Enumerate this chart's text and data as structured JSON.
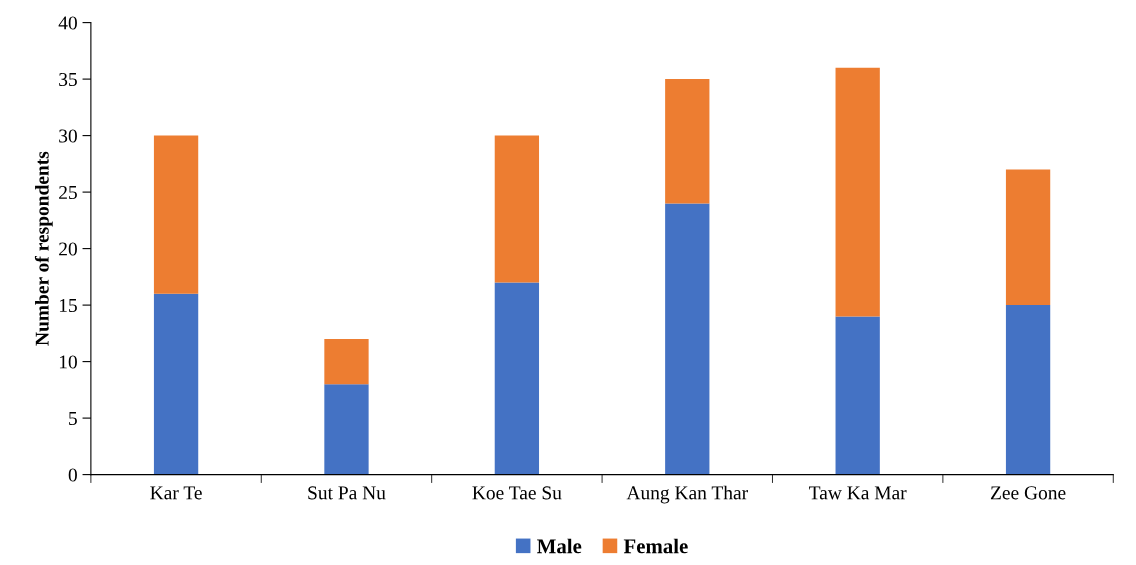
{
  "chart_data": {
    "type": "bar",
    "stacked": true,
    "ylabel": "Number of respondents",
    "categories": [
      "Kar Te",
      "Sut Pa Nu",
      "Koe Tae Su",
      "Aung Kan Thar",
      "Taw Ka Mar",
      "Zee Gone"
    ],
    "series": [
      {
        "name": "Male",
        "color": "#4472c4",
        "values": [
          16,
          8,
          17,
          24,
          14,
          15
        ]
      },
      {
        "name": "Female",
        "color": "#ed7d31",
        "values": [
          14,
          4,
          13,
          11,
          22,
          12
        ]
      }
    ],
    "ylim": [
      0,
      40
    ],
    "yticks": [
      0,
      5,
      10,
      15,
      20,
      25,
      30,
      35,
      40
    ],
    "grid": false,
    "legend": "bottom"
  }
}
